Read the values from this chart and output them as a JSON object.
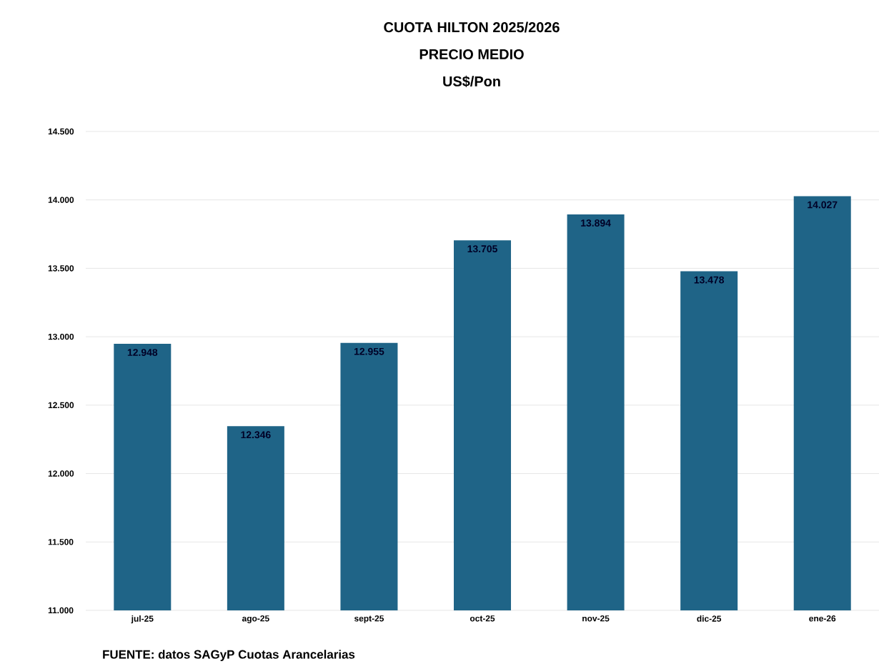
{
  "chart_data": {
    "type": "bar",
    "title": "CUOTA HILTON 2025/2026",
    "subtitle": "PRECIO MEDIO",
    "ylabel": "US$/Pon",
    "categories": [
      "jul-25",
      "ago-25",
      "sept-25",
      "oct-25",
      "nov-25",
      "dic-25",
      "ene-26"
    ],
    "values": [
      12948,
      12346,
      12955,
      13705,
      13894,
      13478,
      14027
    ],
    "value_labels": [
      "12.948",
      "12.346",
      "12.955",
      "13.705",
      "13.894",
      "13.478",
      "14.027"
    ],
    "color": "#1f6487",
    "ylim": [
      11000,
      14500
    ],
    "yticks": [
      {
        "value": 11000,
        "label": "11.000"
      },
      {
        "value": 11500,
        "label": "11.500"
      },
      {
        "value": 12000,
        "label": "12.000"
      },
      {
        "value": 12500,
        "label": "12.500"
      },
      {
        "value": 13000,
        "label": "13.000"
      },
      {
        "value": 13500,
        "label": "13.500"
      },
      {
        "value": 14000,
        "label": "14.000"
      },
      {
        "value": 14500,
        "label": "14.500"
      }
    ],
    "grid": "y",
    "annotations": [
      "FUENTE: datos SAGyP Cuotas Arancelarias"
    ]
  }
}
